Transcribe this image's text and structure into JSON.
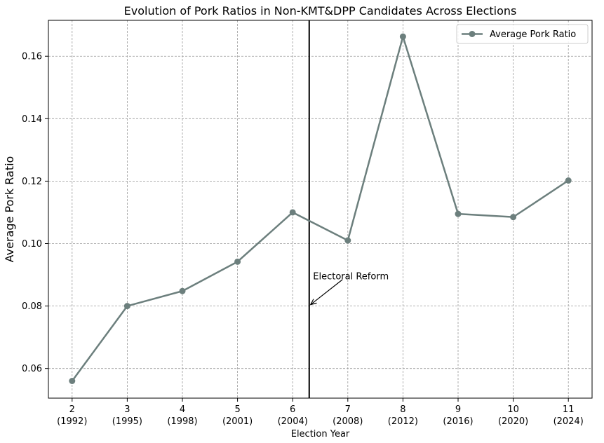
{
  "chart_data": {
    "type": "line",
    "title": "Evolution of Pork Ratios in Non-KMT&DPP Candidates Across Elections",
    "xlabel": "Election Year",
    "ylabel": "Average Pork Ratio",
    "categories": [
      {
        "num": "2",
        "year": "(1992)"
      },
      {
        "num": "3",
        "year": "(1995)"
      },
      {
        "num": "4",
        "year": "(1998)"
      },
      {
        "num": "5",
        "year": "(2001)"
      },
      {
        "num": "6",
        "year": "(2004)"
      },
      {
        "num": "7",
        "year": "(2008)"
      },
      {
        "num": "8",
        "year": "(2012)"
      },
      {
        "num": "9",
        "year": "(2016)"
      },
      {
        "num": "10",
        "year": "(2020)"
      },
      {
        "num": "11",
        "year": "(2024)"
      }
    ],
    "x": [
      2,
      3,
      4,
      5,
      6,
      7,
      8,
      9,
      10,
      11
    ],
    "xlim": [
      1.57,
      11.43
    ],
    "ylim": [
      0.0505,
      0.1715
    ],
    "yticks": [
      0.06,
      0.08,
      0.1,
      0.12,
      0.14,
      0.16
    ],
    "ytick_labels": [
      "0.06",
      "0.08",
      "0.10",
      "0.12",
      "0.14",
      "0.16"
    ],
    "grid": true,
    "legend_position": "top-right",
    "series": [
      {
        "name": "Average Pork Ratio",
        "color": "#6c7f7d",
        "marker": "circle",
        "values": [
          0.056,
          0.08,
          0.0848,
          0.0942,
          0.11,
          0.101,
          0.1663,
          0.1095,
          0.1085,
          0.1202
        ]
      }
    ],
    "reference_line": {
      "x": 6.3,
      "color": "#000000"
    },
    "annotation": {
      "text": "Electoral Reform",
      "point": [
        6.3,
        0.08
      ],
      "text_anchor_point": [
        6.37,
        0.0895
      ]
    }
  }
}
